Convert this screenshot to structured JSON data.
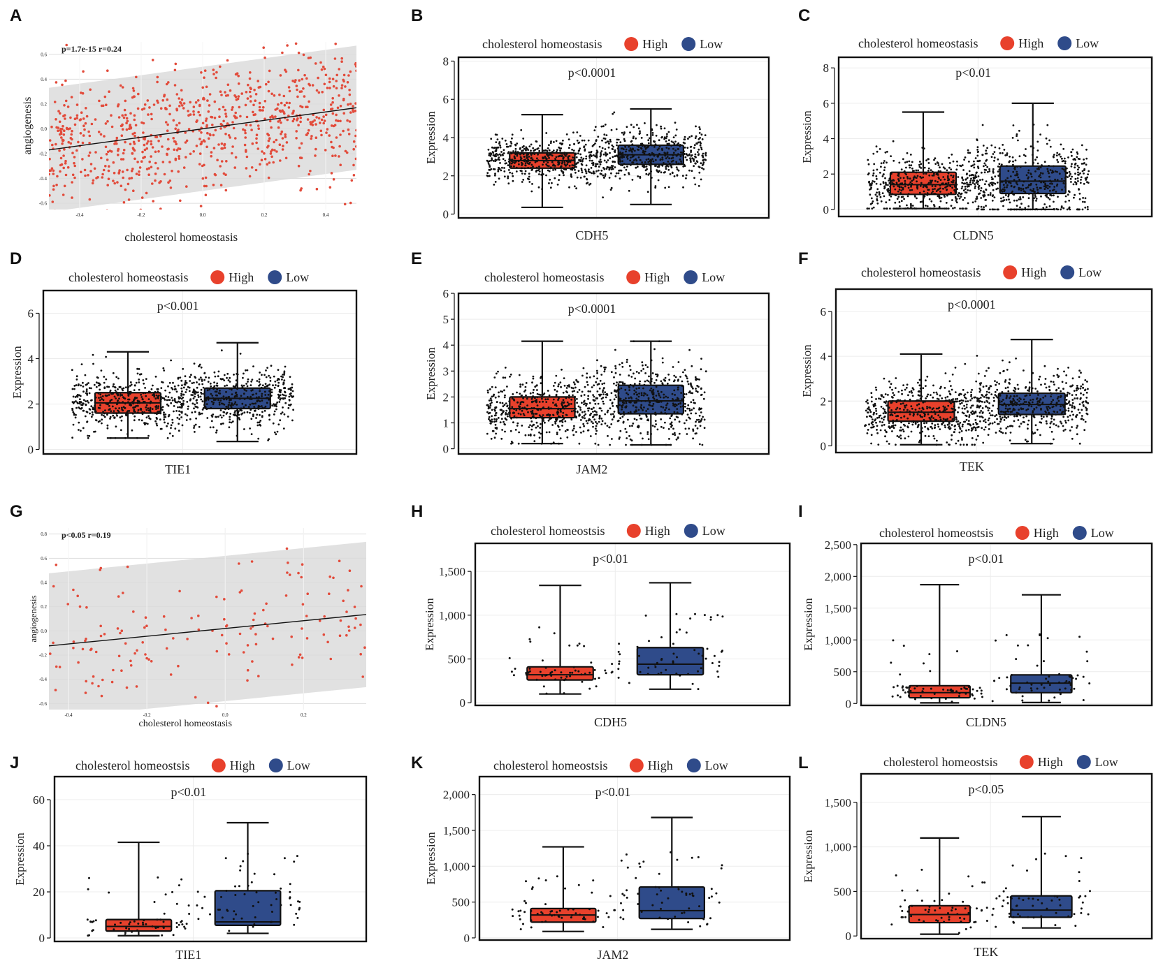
{
  "figure": {
    "colors": {
      "high": "#e8412c",
      "low": "#2f4b8a",
      "point_red": "#e24b3b",
      "band": "#dcdcdc",
      "frame": "#111111",
      "grid": "#dddddd",
      "jitter": "#111111"
    }
  },
  "chart_data": [
    {
      "id": "A",
      "type": "scatter",
      "letter": "A",
      "annotation": "p=1.7e-15 r=0.24",
      "xlabel": "cholesterol homeostasis",
      "ylabel": "angiogenesis",
      "xlim": [
        -0.5,
        0.5
      ],
      "ylim": [
        -0.65,
        0.7
      ],
      "xticks": [
        -0.4,
        -0.2,
        0.0,
        0.2,
        0.4
      ],
      "xtick_labels": [
        "-0.4",
        "-0.2",
        "0.0",
        "0.2",
        "0.4"
      ],
      "yticks": [
        -0.6,
        -0.4,
        -0.2,
        0.0,
        0.2,
        0.4,
        0.6
      ],
      "ytick_labels": [
        "-0.6",
        "-0.4",
        "-0.2",
        "0.0",
        "0.2",
        "0.4",
        "0.6"
      ],
      "fit": {
        "intercept": 0.0,
        "slope": 0.34,
        "band_halfwidth": 0.5
      },
      "n_points": 850,
      "point_spread_y": 0.27,
      "seed": 11
    },
    {
      "id": "B",
      "type": "box",
      "letter": "B",
      "gene": "CDH5",
      "ylabel": "Expression",
      "legend_title": "cholesterol homeostasis",
      "legend": [
        "High",
        "Low"
      ],
      "pvalue": "p<0.0001",
      "ylim": [
        -0.2,
        8.2
      ],
      "yticks": [
        0,
        2,
        4,
        6,
        8
      ],
      "ytick_labels": [
        "0",
        "2",
        "4",
        "6",
        "8"
      ],
      "groups": [
        {
          "name": "High",
          "min": 0.35,
          "q1": 2.4,
          "median": 2.8,
          "q3": 3.2,
          "max": 5.2,
          "n": 500
        },
        {
          "name": "Low",
          "min": 0.5,
          "q1": 2.6,
          "median": 3.1,
          "q3": 3.6,
          "max": 5.5,
          "n": 500
        }
      ],
      "seed": 21
    },
    {
      "id": "C",
      "type": "box",
      "letter": "C",
      "gene": "CLDN5",
      "ylabel": "Expression",
      "legend_title": "cholesterol homeostasis",
      "legend": [
        "High",
        "Low"
      ],
      "pvalue": "p<0.01",
      "ylim": [
        -0.4,
        8.6
      ],
      "yticks": [
        0,
        2,
        4,
        6,
        8
      ],
      "ytick_labels": [
        "0",
        "2",
        "4",
        "6",
        "8"
      ],
      "groups": [
        {
          "name": "High",
          "min": 0.05,
          "q1": 0.85,
          "median": 1.4,
          "q3": 2.1,
          "max": 5.5,
          "n": 500
        },
        {
          "name": "Low",
          "min": 0.0,
          "q1": 0.9,
          "median": 1.6,
          "q3": 2.45,
          "max": 6.0,
          "n": 500
        }
      ],
      "seed": 22
    },
    {
      "id": "D",
      "type": "box",
      "letter": "D",
      "gene": "TIE1",
      "ylabel": "Expression",
      "legend_title": "cholesterol homeostasis",
      "legend": [
        "High",
        "Low"
      ],
      "pvalue": "p<0.001",
      "ylim": [
        -0.2,
        7.0
      ],
      "yticks": [
        0,
        2,
        4,
        6
      ],
      "ytick_labels": [
        "0",
        "2",
        "4",
        "6"
      ],
      "groups": [
        {
          "name": "High",
          "min": 0.5,
          "q1": 1.6,
          "median": 2.05,
          "q3": 2.5,
          "max": 4.3,
          "n": 500
        },
        {
          "name": "Low",
          "min": 0.35,
          "q1": 1.8,
          "median": 2.25,
          "q3": 2.7,
          "max": 4.7,
          "n": 500
        }
      ],
      "seed": 23
    },
    {
      "id": "E",
      "type": "box",
      "letter": "E",
      "gene": "JAM2",
      "ylabel": "Expression",
      "legend_title": "cholesterol homeostasis",
      "legend": [
        "High",
        "Low"
      ],
      "pvalue": "p<0.0001",
      "ylim": [
        -0.2,
        6.0
      ],
      "yticks": [
        0,
        1,
        2,
        3,
        4,
        5,
        6
      ],
      "ytick_labels": [
        "0",
        "1",
        "2",
        "3",
        "4",
        "5",
        "6"
      ],
      "groups": [
        {
          "name": "High",
          "min": 0.2,
          "q1": 1.2,
          "median": 1.55,
          "q3": 2.0,
          "max": 4.15,
          "n": 500
        },
        {
          "name": "Low",
          "min": 0.15,
          "q1": 1.35,
          "median": 1.85,
          "q3": 2.45,
          "max": 4.15,
          "n": 500
        }
      ],
      "seed": 24
    },
    {
      "id": "F",
      "type": "box",
      "letter": "F",
      "gene": "TEK",
      "ylabel": "Expression",
      "legend_title": "cholesterol homeostasis",
      "legend": [
        "High",
        "Low"
      ],
      "pvalue": "p<0.0001",
      "ylim": [
        -0.3,
        7.0
      ],
      "yticks": [
        0,
        2,
        4,
        6
      ],
      "ytick_labels": [
        "0",
        "2",
        "4",
        "6"
      ],
      "groups": [
        {
          "name": "High",
          "min": 0.05,
          "q1": 1.1,
          "median": 1.5,
          "q3": 2.0,
          "max": 4.1,
          "n": 500
        },
        {
          "name": "Low",
          "min": 0.1,
          "q1": 1.4,
          "median": 1.85,
          "q3": 2.35,
          "max": 4.75,
          "n": 500
        }
      ],
      "seed": 25
    },
    {
      "id": "G",
      "type": "scatter",
      "letter": "G",
      "annotation": "p<0.05 r=0.19",
      "xlabel": "cholesterol homeostasis",
      "ylabel": "angiogenesis",
      "xlim": [
        -0.45,
        0.36
      ],
      "ylim": [
        -0.65,
        0.85
      ],
      "xticks": [
        -0.4,
        -0.2,
        0.0,
        0.2
      ],
      "xtick_labels": [
        "-0.4",
        "-0.2",
        "0.0",
        "0.2"
      ],
      "yticks": [
        -0.6,
        -0.4,
        -0.2,
        0.0,
        0.2,
        0.4,
        0.6,
        0.8
      ],
      "ytick_labels": [
        "-0.6",
        "-0.4",
        "-0.2",
        "0.0",
        "0.2",
        "0.4",
        "0.6",
        "0.8"
      ],
      "fit": {
        "intercept": 0.02,
        "slope": 0.32,
        "band_halfwidth": 0.6
      },
      "n_points": 150,
      "point_spread_y": 0.28,
      "seed": 31
    },
    {
      "id": "H",
      "type": "box",
      "letter": "H",
      "gene": "CDH5",
      "ylabel": "Expression",
      "legend_title": "cholesterol homeostsis",
      "legend": [
        "High",
        "Low"
      ],
      "pvalue": "p<0.01",
      "ylim": [
        -30,
        1820
      ],
      "yticks": [
        0,
        500,
        1000,
        1500
      ],
      "ytick_labels": [
        "0",
        "500",
        "1,000",
        "1,500"
      ],
      "groups": [
        {
          "name": "High",
          "min": 100,
          "q1": 260,
          "median": 320,
          "q3": 410,
          "max": 1340,
          "n": 60
        },
        {
          "name": "Low",
          "min": 155,
          "q1": 320,
          "median": 440,
          "q3": 630,
          "max": 1370,
          "n": 60
        }
      ],
      "seed": 41
    },
    {
      "id": "I",
      "type": "box",
      "letter": "I",
      "gene": "CLDN5",
      "ylabel": "Expression",
      "legend_title": "cholesterol homeostsis",
      "legend": [
        "High",
        "Low"
      ],
      "pvalue": "p<0.01",
      "ylim": [
        -30,
        2520
      ],
      "yticks": [
        0,
        500,
        1000,
        1500,
        2000,
        2500
      ],
      "ytick_labels": [
        "0",
        "500",
        "1,000",
        "1,500",
        "2,000",
        "2,500"
      ],
      "groups": [
        {
          "name": "High",
          "min": 10,
          "q1": 90,
          "median": 170,
          "q3": 280,
          "max": 1870,
          "n": 60
        },
        {
          "name": "Low",
          "min": 15,
          "q1": 170,
          "median": 320,
          "q3": 450,
          "max": 1710,
          "n": 60
        }
      ],
      "seed": 42
    },
    {
      "id": "J",
      "type": "box",
      "letter": "J",
      "gene": "TIE1",
      "ylabel": "Expression",
      "legend_title": "cholesterol homeostsis",
      "legend": [
        "High",
        "Low"
      ],
      "pvalue": "p<0.01",
      "ylim": [
        -1.5,
        70
      ],
      "yticks": [
        0,
        20,
        40,
        60
      ],
      "ytick_labels": [
        "0",
        "20",
        "40",
        "60"
      ],
      "groups": [
        {
          "name": "High",
          "min": 1.0,
          "q1": 3.0,
          "median": 5.0,
          "q3": 8.0,
          "max": 41.5,
          "n": 60
        },
        {
          "name": "Low",
          "min": 2.0,
          "q1": 5.5,
          "median": 7.0,
          "q3": 20.5,
          "max": 50.0,
          "n": 60
        }
      ],
      "seed": 43
    },
    {
      "id": "K",
      "type": "box",
      "letter": "K",
      "gene": "JAM2",
      "ylabel": "Expression",
      "legend_title": "cholesterol homeostsis",
      "legend": [
        "High",
        "Low"
      ],
      "pvalue": "p<0.01",
      "ylim": [
        -30,
        2250
      ],
      "yticks": [
        0,
        500,
        1000,
        1500,
        2000
      ],
      "ytick_labels": [
        "0",
        "500",
        "1,000",
        "1,500",
        "2,000"
      ],
      "groups": [
        {
          "name": "High",
          "min": 90,
          "q1": 220,
          "median": 320,
          "q3": 410,
          "max": 1270,
          "n": 60
        },
        {
          "name": "Low",
          "min": 120,
          "q1": 270,
          "median": 380,
          "q3": 710,
          "max": 1680,
          "n": 60
        }
      ],
      "seed": 44
    },
    {
      "id": "L",
      "type": "box",
      "letter": "L",
      "gene": "TEK",
      "ylabel": "Expression",
      "legend_title": "cholesterol homeostsis",
      "legend": [
        "High",
        "Low"
      ],
      "pvalue": "p<0.05",
      "ylim": [
        -30,
        1820
      ],
      "yticks": [
        0,
        500,
        1000,
        1500
      ],
      "ytick_labels": [
        "0",
        "500",
        "1,000",
        "1,500"
      ],
      "groups": [
        {
          "name": "High",
          "min": 20,
          "q1": 150,
          "median": 240,
          "q3": 340,
          "max": 1100,
          "n": 60
        },
        {
          "name": "Low",
          "min": 90,
          "q1": 210,
          "median": 290,
          "q3": 450,
          "max": 1340,
          "n": 60
        }
      ],
      "seed": 45
    }
  ]
}
